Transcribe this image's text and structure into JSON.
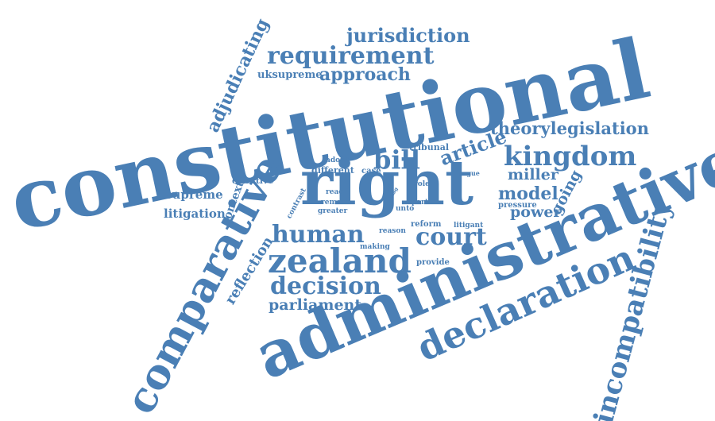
{
  "word_cloud": {
    "color": "#4a7fb5",
    "words": [
      "constitutional",
      "administrative",
      "right",
      "comparative",
      "declaration",
      "incompatibility",
      "zealand",
      "court",
      "human",
      "decision",
      "kingdom",
      "bill",
      "requirement",
      "jurisdiction",
      "approach",
      "theorylegislation",
      "article",
      "parliament",
      "model",
      "adjudicating",
      "power",
      "miller",
      "going",
      "reflection",
      "context",
      "litigation",
      "supreme",
      "uksupreme",
      "tribunal",
      "effective",
      "adopt",
      "different",
      "case",
      "reach",
      "remain",
      "greater",
      "contrast",
      "role",
      "part",
      "unto",
      "prac",
      "diag",
      "argue",
      "pressure",
      "reform",
      "litigant",
      "reason",
      "making",
      "provide"
    ]
  }
}
